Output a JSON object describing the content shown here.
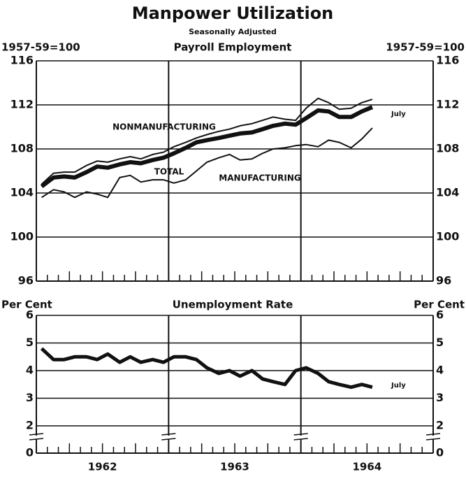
{
  "title": "Manpower Utilization",
  "subtitle": "Seasonally Adjusted",
  "chart_data": [
    {
      "type": "line",
      "title": "Payroll Employment",
      "ylabel": "1957-59=100",
      "y2label": "1957-59=100",
      "xlim": [
        1962,
        1965
      ],
      "xticks": [
        {
          "value": 1962.5,
          "label": "1962"
        },
        {
          "value": 1963.5,
          "label": "1963"
        },
        {
          "value": 1964.5,
          "label": "1964"
        }
      ],
      "ylim": [
        96,
        116
      ],
      "yticks": [
        96,
        100,
        104,
        108,
        112,
        116
      ],
      "grid": true,
      "x": [
        1962.04,
        1962.13,
        1962.21,
        1962.29,
        1962.38,
        1962.46,
        1962.54,
        1962.63,
        1962.71,
        1962.79,
        1962.88,
        1962.96,
        1963.04,
        1963.13,
        1963.21,
        1963.29,
        1963.38,
        1963.46,
        1963.54,
        1963.63,
        1963.71,
        1963.79,
        1963.88,
        1963.96,
        1964.04,
        1964.13,
        1964.21,
        1964.29,
        1964.38,
        1964.46,
        1964.54
      ],
      "series": [
        {
          "name": "NONMANUFACTURING",
          "color": "#111111",
          "line_width": 2,
          "values": [
            104.8,
            105.8,
            105.9,
            105.9,
            106.5,
            106.9,
            106.8,
            107.1,
            107.3,
            107.1,
            107.5,
            107.7,
            108.2,
            108.6,
            109.0,
            109.3,
            109.6,
            109.8,
            110.1,
            110.3,
            110.6,
            110.9,
            110.7,
            110.6,
            111.7,
            112.6,
            112.2,
            111.6,
            111.7,
            112.2,
            112.5
          ]
        },
        {
          "name": "TOTAL",
          "color": "#111111",
          "line_width": 6,
          "values": [
            104.6,
            105.4,
            105.5,
            105.4,
            105.9,
            106.4,
            106.3,
            106.6,
            106.8,
            106.7,
            107.0,
            107.2,
            107.6,
            108.1,
            108.6,
            108.8,
            109.0,
            109.2,
            109.4,
            109.5,
            109.8,
            110.1,
            110.3,
            110.2,
            110.8,
            111.5,
            111.4,
            110.9,
            110.9,
            111.4,
            111.8
          ]
        },
        {
          "name": "MANUFACTURING",
          "color": "#111111",
          "line_width": 2,
          "values": [
            103.6,
            104.3,
            104.1,
            103.6,
            104.1,
            103.9,
            103.6,
            105.4,
            105.6,
            105.0,
            105.2,
            105.2,
            104.9,
            105.2,
            106.0,
            106.8,
            107.2,
            107.5,
            107.0,
            107.1,
            107.6,
            108.0,
            108.1,
            108.3,
            108.4,
            108.2,
            108.8,
            108.6,
            108.1,
            108.9,
            109.9
          ]
        }
      ],
      "annotations": [
        "July"
      ]
    },
    {
      "type": "line",
      "title": "Unemployment Rate",
      "ylabel": "Per Cent",
      "y2label": "Per Cent",
      "xlim": [
        1962,
        1965
      ],
      "xticks": [
        {
          "value": 1962.5,
          "label": "1962"
        },
        {
          "value": 1963.5,
          "label": "1963"
        },
        {
          "value": 1964.5,
          "label": "1964"
        }
      ],
      "ylim": [
        2,
        6
      ],
      "yticks": [
        2,
        3,
        4,
        5,
        6
      ],
      "axis_break_tick": 0,
      "grid": true,
      "x": [
        1962.04,
        1962.13,
        1962.21,
        1962.29,
        1962.38,
        1962.46,
        1962.54,
        1962.63,
        1962.71,
        1962.79,
        1962.88,
        1962.96,
        1963.04,
        1963.13,
        1963.21,
        1963.29,
        1963.38,
        1963.46,
        1963.54,
        1963.63,
        1963.71,
        1963.79,
        1963.88,
        1963.96,
        1964.04,
        1964.13,
        1964.21,
        1964.29,
        1964.38,
        1964.46,
        1964.54
      ],
      "series": [
        {
          "name": "Unemployment Rate",
          "color": "#111111",
          "line_width": 5,
          "values": [
            4.8,
            4.4,
            4.4,
            4.5,
            4.5,
            4.4,
            4.6,
            4.3,
            4.5,
            4.3,
            4.4,
            4.3,
            4.5,
            4.5,
            4.4,
            4.1,
            3.9,
            4.0,
            3.8,
            4.0,
            3.7,
            3.6,
            3.5,
            4.0,
            4.1,
            3.9,
            3.6,
            3.5,
            3.4,
            3.5,
            3.4
          ]
        }
      ],
      "annotations": [
        "July"
      ]
    }
  ]
}
